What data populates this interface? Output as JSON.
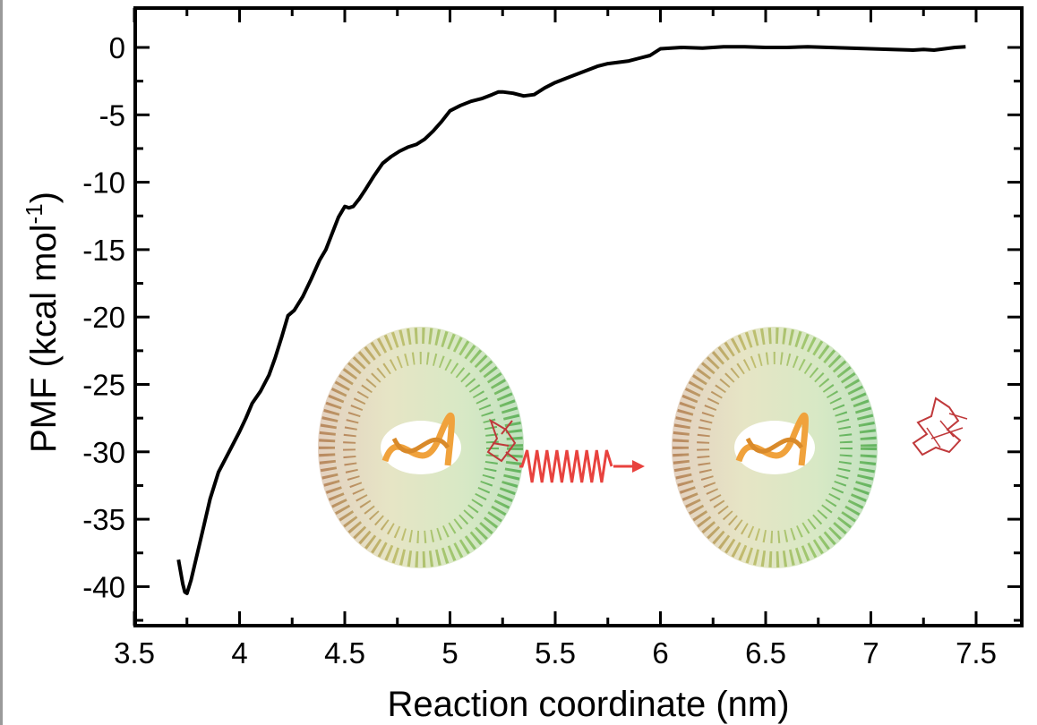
{
  "chart_data": {
    "type": "line",
    "xlabel": "Reaction coordinate (nm)",
    "ylabel": {
      "main": "PMF (kcal mol",
      "sup": "-1",
      "close": ")"
    },
    "xlim": [
      3.5,
      7.5
    ],
    "ylim": [
      -43,
      2.8
    ],
    "x_ticks": [
      3.5,
      4,
      4.5,
      5,
      5.5,
      6,
      6.5,
      7,
      7.5
    ],
    "x_tick_labels": [
      "3.5",
      "4",
      "4.5",
      "5",
      "5.5",
      "6",
      "6.5",
      "7",
      "7.5"
    ],
    "y_ticks": [
      0,
      -5,
      -10,
      -15,
      -20,
      -25,
      -30,
      -35,
      -40
    ],
    "y_tick_labels": [
      "0",
      "-5",
      "-10",
      "-15",
      "-20",
      "-25",
      "-30",
      "-35",
      "-40"
    ],
    "series": [
      {
        "color": "#000000",
        "x": [
          3.71,
          3.73,
          3.74,
          3.75,
          3.77,
          3.8,
          3.83,
          3.86,
          3.9,
          3.95,
          4.0,
          4.03,
          4.06,
          4.1,
          4.14,
          4.17,
          4.2,
          4.23,
          4.26,
          4.3,
          4.34,
          4.38,
          4.41,
          4.44,
          4.47,
          4.5,
          4.52,
          4.54,
          4.57,
          4.6,
          4.64,
          4.68,
          4.72,
          4.76,
          4.8,
          4.84,
          4.88,
          4.92,
          4.96,
          5.0,
          5.05,
          5.1,
          5.15,
          5.2,
          5.23,
          5.25,
          5.3,
          5.35,
          5.4,
          5.45,
          5.5,
          5.55,
          5.6,
          5.65,
          5.7,
          5.75,
          5.8,
          5.85,
          5.9,
          5.95,
          6.0,
          6.1,
          6.2,
          6.3,
          6.4,
          6.5,
          6.6,
          6.7,
          6.8,
          6.9,
          7.0,
          7.1,
          7.2,
          7.25,
          7.3,
          7.35,
          7.4,
          7.45
        ],
        "y": [
          -38.0,
          -39.8,
          -40.4,
          -40.5,
          -39.5,
          -37.5,
          -35.5,
          -33.5,
          -31.5,
          -30.0,
          -28.5,
          -27.5,
          -26.4,
          -25.5,
          -24.3,
          -23.0,
          -21.5,
          -19.9,
          -19.5,
          -18.5,
          -17.2,
          -15.8,
          -15.0,
          -13.8,
          -12.6,
          -11.8,
          -11.9,
          -11.8,
          -11.2,
          -10.5,
          -9.5,
          -8.6,
          -8.1,
          -7.7,
          -7.4,
          -7.2,
          -6.8,
          -6.2,
          -5.5,
          -4.7,
          -4.3,
          -4.0,
          -3.8,
          -3.5,
          -3.3,
          -3.3,
          -3.4,
          -3.6,
          -3.5,
          -3.0,
          -2.6,
          -2.3,
          -2.0,
          -1.7,
          -1.4,
          -1.2,
          -1.1,
          -1.0,
          -0.8,
          -0.6,
          -0.1,
          0.0,
          -0.05,
          0.05,
          0.05,
          0.0,
          0.0,
          0.05,
          0.0,
          -0.05,
          -0.1,
          -0.15,
          -0.2,
          -0.15,
          -0.2,
          -0.1,
          0.0,
          0.05
        ]
      }
    ]
  },
  "inset": {
    "protein_left_label": "",
    "arrow_color": "#e8423e",
    "dna_color": "#f0a23c",
    "peptide_color": "#c0393b"
  }
}
